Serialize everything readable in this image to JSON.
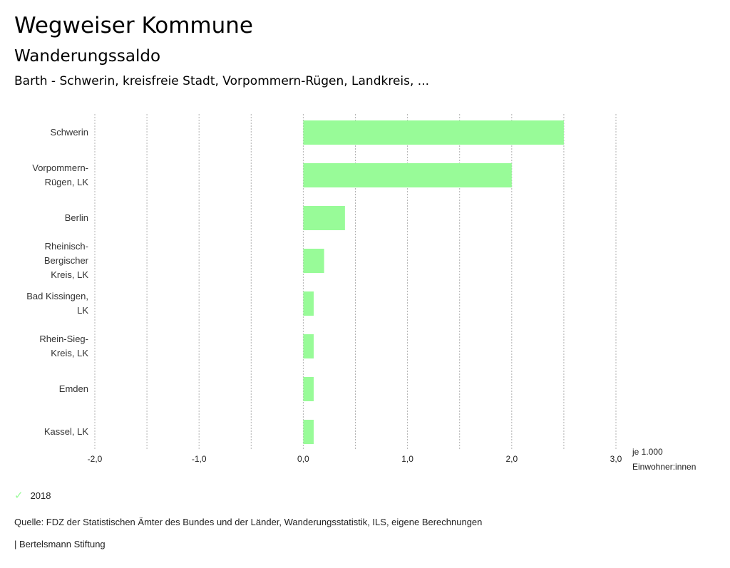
{
  "header": {
    "title": "Wegweiser Kommune",
    "subtitle": "Wanderungssaldo",
    "description": "Barth - Schwerin, kreisfreie Stadt, Vorpommern-Rügen, Landkreis, ..."
  },
  "chart_data": {
    "type": "bar",
    "orientation": "horizontal",
    "title": "Wanderungssaldo",
    "categories": [
      [
        "Schwerin"
      ],
      [
        "Vorpommern-",
        "Rügen, LK"
      ],
      [
        "Berlin"
      ],
      [
        "Rheinisch-",
        "Bergischer",
        "Kreis, LK"
      ],
      [
        "Bad Kissingen,",
        "LK"
      ],
      [
        "Rhein-Sieg-",
        "Kreis, LK"
      ],
      [
        "Emden"
      ],
      [
        "Kassel, LK"
      ]
    ],
    "series": [
      {
        "name": "2018",
        "color": "#98fb98",
        "values": [
          2.5,
          2.0,
          0.4,
          0.2,
          0.1,
          0.1,
          0.1,
          0.1
        ]
      }
    ],
    "xlim": [
      -2.0,
      3.0
    ],
    "xticks": [
      -2.0,
      -1.0,
      0.0,
      1.0,
      2.0,
      3.0
    ],
    "xtick_labels": [
      "-2,0",
      "-1,0",
      "0,0",
      "1,0",
      "2,0",
      "3,0"
    ],
    "xlabel": [
      "je 1.000",
      "Einwohner:innen"
    ],
    "grid": true,
    "legend_position": "bottom-left"
  },
  "legend": {
    "label": "2018",
    "color": "#98fb98"
  },
  "footer": {
    "source": "Quelle: FDZ der Statistischen Ämter des Bundes und der Länder, Wanderungsstatistik, ILS, eigene Berechnungen",
    "brand": "| Bertelsmann Stiftung"
  }
}
